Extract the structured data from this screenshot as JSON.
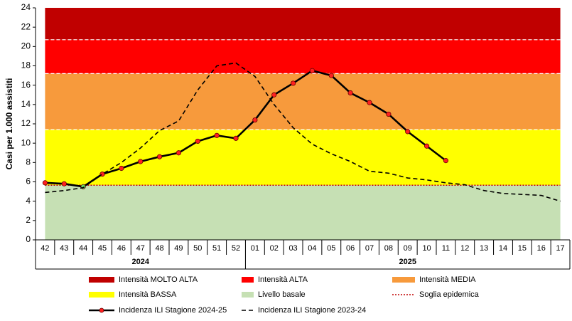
{
  "chart_data": {
    "type": "line",
    "y_label": "Casi per 1.000 assistiti",
    "categories": [
      "42",
      "43",
      "44",
      "45",
      "46",
      "47",
      "48",
      "49",
      "50",
      "51",
      "52",
      "01",
      "02",
      "03",
      "04",
      "05",
      "06",
      "07",
      "08",
      "09",
      "10",
      "11",
      "12",
      "13",
      "14",
      "15",
      "16",
      "17"
    ],
    "groups": [
      {
        "label": "2024",
        "start": 0,
        "end": 10
      },
      {
        "label": "2025",
        "start": 11,
        "end": 27
      }
    ],
    "ylim": [
      0,
      24
    ],
    "yticks": [
      0,
      2,
      4,
      6,
      8,
      10,
      12,
      14,
      16,
      18,
      20,
      22,
      24
    ],
    "bands": [
      {
        "name": "Intensità MOLTO ALTA",
        "color": "#c00000",
        "from": 20.7,
        "to": 24
      },
      {
        "name": "Intensità ALTA",
        "color": "#ff0000",
        "from": 17.2,
        "to": 20.7
      },
      {
        "name": "Intensità MEDIA",
        "color": "#f79a3c",
        "from": 11.4,
        "to": 17.2
      },
      {
        "name": "Intensità BASSA",
        "color": "#ffff00",
        "from": 5.65,
        "to": 11.4
      },
      {
        "name": "Livello basale",
        "color": "#c6e0b4",
        "from": 0,
        "to": 5.65
      }
    ],
    "threshold": {
      "name": "Soglia epidemica",
      "value": 5.65,
      "color": "#c00000"
    },
    "series": [
      {
        "name": "Incidenza ILI Stagione 2024-25",
        "color": "#000000",
        "marker_color": "#ff2020",
        "dash": false,
        "highlight": {
          "index": 2,
          "color": "#66dd66"
        },
        "values": [
          5.9,
          5.8,
          5.5,
          6.8,
          7.4,
          8.1,
          8.6,
          9.0,
          10.2,
          10.8,
          10.5,
          12.4,
          15.0,
          16.2,
          17.5,
          17.0,
          15.2,
          14.2,
          13.0,
          11.2,
          9.7,
          8.2,
          null,
          null,
          null,
          null,
          null,
          null
        ]
      },
      {
        "name": "Incidenza ILI Stagione 2023-24",
        "color": "#000000",
        "dash": true,
        "values": [
          4.9,
          5.1,
          5.4,
          6.8,
          8.0,
          9.5,
          11.3,
          12.3,
          15.5,
          18.0,
          18.3,
          16.9,
          14.0,
          11.6,
          9.9,
          8.9,
          8.1,
          7.1,
          6.9,
          6.4,
          6.2,
          5.9,
          5.7,
          5.1,
          4.8,
          4.7,
          4.6,
          4.0
        ]
      }
    ]
  }
}
